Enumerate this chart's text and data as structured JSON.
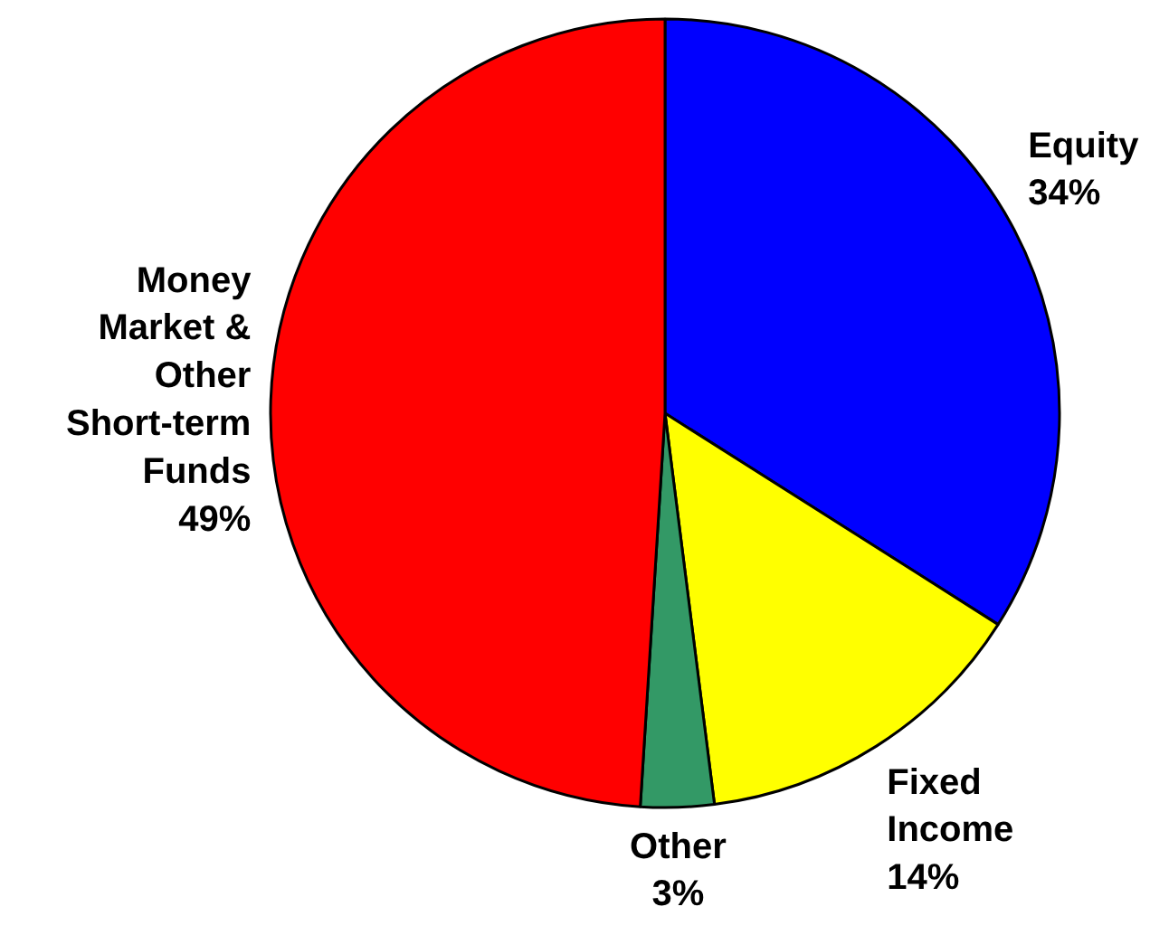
{
  "chart_data": {
    "type": "pie",
    "categories": [
      "Equity",
      "Fixed Income",
      "Other",
      "Money Market & Other Short-term Funds"
    ],
    "values": [
      34,
      14,
      3,
      49
    ],
    "colors": [
      "#0000ff",
      "#ffff00",
      "#339966",
      "#ff0000"
    ],
    "value_labels": [
      "34%",
      "14%",
      "3%",
      "49%"
    ]
  }
}
